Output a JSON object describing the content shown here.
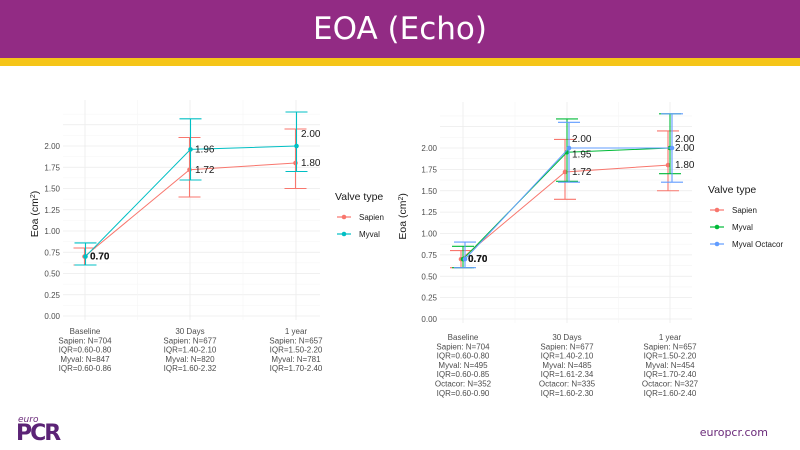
{
  "header": {
    "title": "EOA (Echo)"
  },
  "footer": {
    "logo_small": "euro",
    "logo_main": "PCR",
    "site": "europcr.com"
  },
  "chart_data": [
    {
      "type": "line",
      "title": "",
      "xlabel": "",
      "ylabel": "Eoa (cm²)",
      "ylim": [
        0,
        2.4
      ],
      "yticks": [
        "0.00",
        "0.25",
        "0.50",
        "0.75",
        "1.00",
        "1.25",
        "1.50",
        "1.75",
        "2.00"
      ],
      "grid": true,
      "legend": {
        "title": "Valve type",
        "position": "right"
      },
      "categories": [
        [
          "Baseline",
          "Sapien: N=704",
          "IQR=0.60-0.80",
          "Myval: N=847",
          "IQR=0.60-0.86"
        ],
        [
          "30 Days",
          "Sapien: N=677",
          "IQR=1.40-2.10",
          "Myval: N=820",
          "IQR=1.60-2.32"
        ],
        [
          "1 year",
          "Sapien: N=657",
          "IQR=1.50-2.20",
          "Myval: N=781",
          "IQR=1.70-2.40"
        ]
      ],
      "series": [
        {
          "name": "Sapien",
          "color": "#f8766d",
          "values": [
            0.7,
            1.72,
            1.8
          ],
          "labels": [
            "0.70",
            "1.72",
            "1.80"
          ],
          "lower": [
            0.6,
            1.4,
            1.5
          ],
          "upper": [
            0.8,
            2.1,
            2.2
          ]
        },
        {
          "name": "Myval",
          "color": "#00bfc4",
          "values": [
            0.7,
            1.96,
            2.0
          ],
          "labels": [
            "0.70",
            "1.96",
            "2.00"
          ],
          "lower": [
            0.6,
            1.6,
            1.7
          ],
          "upper": [
            0.86,
            2.32,
            2.4
          ]
        }
      ]
    },
    {
      "type": "line",
      "title": "",
      "xlabel": "",
      "ylabel": "Eoa (cm²)",
      "ylim": [
        0,
        2.4
      ],
      "yticks": [
        "0.00",
        "0.25",
        "0.50",
        "0.75",
        "1.00",
        "1.25",
        "1.50",
        "1.75",
        "2.00"
      ],
      "grid": true,
      "legend": {
        "title": "Valve type",
        "position": "right"
      },
      "categories": [
        [
          "Baseline",
          "Sapien: N=704",
          "IQR=0.60-0.80",
          "Myval: N=495",
          "IQR=0.60-0.85",
          "Octacor: N=352",
          "IQR=0.60-0.90"
        ],
        [
          "30 Days",
          "Sapien: N=677",
          "IQR=1.40-2.10",
          "Myval: N=485",
          "IQR=1.61-2.34",
          "Octacor: N=335",
          "IQR=1.60-2.30"
        ],
        [
          "1 year",
          "Sapien: N=657",
          "IQR=1.50-2.20",
          "Myval: N=454",
          "IQR=1.70-2.40",
          "Octacor: N=327",
          "IQR=1.60-2.40"
        ]
      ],
      "series": [
        {
          "name": "Sapien",
          "color": "#f8766d",
          "values": [
            0.7,
            1.72,
            1.8
          ],
          "labels": [
            "0.70",
            "1.72",
            "1.80"
          ],
          "lower": [
            0.6,
            1.4,
            1.5
          ],
          "upper": [
            0.8,
            2.1,
            2.2
          ]
        },
        {
          "name": "Myval",
          "color": "#00ba38",
          "values": [
            0.7,
            1.95,
            2.0
          ],
          "labels": [
            "0.70",
            "1.95",
            "2.00"
          ],
          "lower": [
            0.6,
            1.61,
            1.7
          ],
          "upper": [
            0.85,
            2.34,
            2.4
          ]
        },
        {
          "name": "Myval Octacor",
          "color": "#619cff",
          "values": [
            0.7,
            2.0,
            2.0
          ],
          "labels": [
            "0.70",
            "2.00",
            "2.00"
          ],
          "lower": [
            0.6,
            1.6,
            1.6
          ],
          "upper": [
            0.9,
            2.3,
            2.4
          ]
        }
      ]
    }
  ]
}
